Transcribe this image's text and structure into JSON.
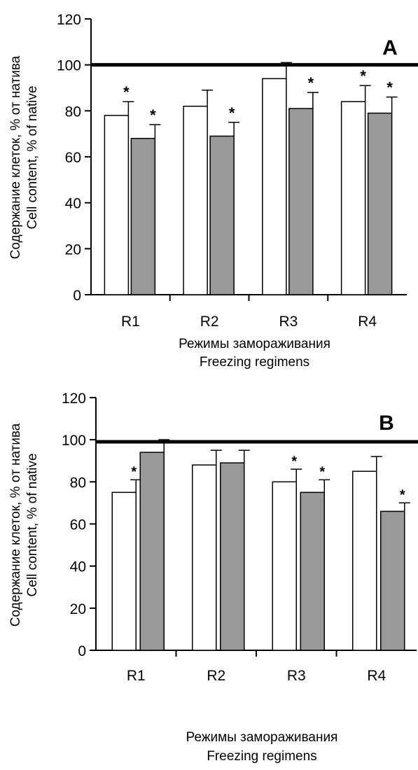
{
  "chart_data": [
    {
      "type": "bar",
      "panel_label": "A",
      "categories": [
        "R1",
        "R2",
        "R3",
        "R4"
      ],
      "ylim": [
        0,
        120
      ],
      "yticks": [
        0,
        20,
        40,
        60,
        80,
        100,
        120
      ],
      "ylabel_ru": "Содержание клеток, % от натива",
      "ylabel_en": "Cell content, % of native",
      "xlabel_ru": "Режимы замораживания",
      "xlabel_en": "Freezing regimens",
      "reference_line": 100,
      "legend": "none",
      "grid": false,
      "series": [
        {
          "color": "#ffffff",
          "values": [
            78,
            82,
            94,
            84
          ],
          "errors": [
            6,
            7,
            7,
            7
          ],
          "significant": [
            true,
            false,
            false,
            true
          ]
        },
        {
          "color": "#999999",
          "values": [
            68,
            69,
            81,
            79
          ],
          "errors": [
            6,
            6,
            7,
            7
          ],
          "significant": [
            true,
            true,
            true,
            true
          ]
        }
      ],
      "significance_symbol": "*"
    },
    {
      "type": "bar",
      "panel_label": "B",
      "categories": [
        "R1",
        "R2",
        "R3",
        "R4"
      ],
      "ylim": [
        0,
        120
      ],
      "yticks": [
        0,
        20,
        40,
        60,
        80,
        100,
        120
      ],
      "ylabel_ru": "Содержание клеток, % от натива",
      "ylabel_en": "Cell content, % of native",
      "xlabel_ru": "Режимы замораживания",
      "xlabel_en": "Freezing regimens",
      "reference_line": 99,
      "legend": "none",
      "grid": false,
      "series": [
        {
          "color": "#ffffff",
          "values": [
            75,
            88,
            80,
            85
          ],
          "errors": [
            6,
            7,
            6,
            7
          ],
          "significant": [
            true,
            false,
            true,
            false
          ]
        },
        {
          "color": "#999999",
          "values": [
            94,
            89,
            75,
            66
          ],
          "errors": [
            6,
            6,
            6,
            4
          ],
          "significant": [
            false,
            false,
            true,
            true
          ]
        }
      ],
      "significance_symbol": "*"
    }
  ]
}
